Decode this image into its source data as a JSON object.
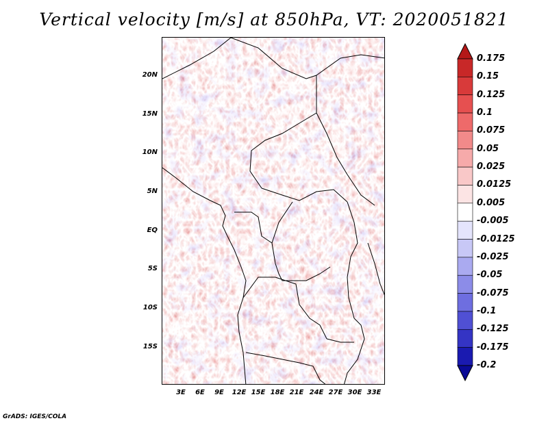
{
  "title": "Vertical velocity [m/s] at 850hPa, VT: 2020051821",
  "credit": "GrADS: IGES/COLA",
  "map": {
    "field": "vertical velocity",
    "units": "m/s",
    "level": "850hPa",
    "valid_time": "2020051821",
    "lon_labels": [
      "3E",
      "6E",
      "9E",
      "12E",
      "15E",
      "18E",
      "21E",
      "24E",
      "27E",
      "30E",
      "33E"
    ],
    "lat_labels": [
      "20N",
      "15N",
      "10N",
      "5N",
      "EQ",
      "5S",
      "10S",
      "15S"
    ]
  },
  "colorbar": {
    "labels": [
      "0.175",
      "0.15",
      "0.125",
      "0.1",
      "0.075",
      "0.05",
      "0.025",
      "0.0125",
      "0.005",
      "-0.005",
      "-0.0125",
      "-0.025",
      "-0.05",
      "-0.075",
      "-0.1",
      "-0.125",
      "-0.175",
      "-0.2"
    ],
    "colors": [
      "#b41818",
      "#c82828",
      "#d83a3a",
      "#e65050",
      "#ee6a6a",
      "#f28a8a",
      "#f6aaaa",
      "#f9c8c8",
      "#fce4e4",
      "#ffffff",
      "#e4e4fc",
      "#c8c8f6",
      "#aaaaf0",
      "#8c8ce8",
      "#6e6ee0",
      "#5050d4",
      "#3434c4",
      "#1a1ab0",
      "#0a0a96"
    ]
  },
  "colors": {
    "positive_dark": "#b41818",
    "negative_dark": "#0a0a96",
    "background": "#ffffff",
    "border": "#000000"
  }
}
